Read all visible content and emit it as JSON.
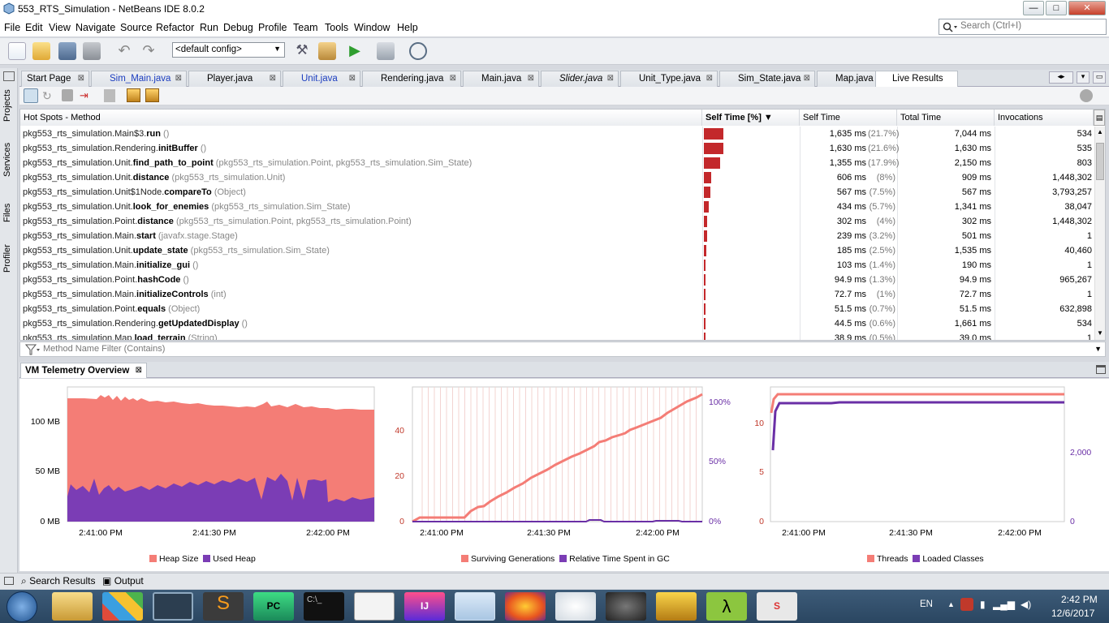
{
  "window": {
    "title": "553_RTS_Simulation - NetBeans IDE 8.0.2",
    "minimize": "—",
    "maximize": "□",
    "close": "✕"
  },
  "menus": [
    "File",
    "Edit",
    "View",
    "Navigate",
    "Source",
    "Refactor",
    "Run",
    "Debug",
    "Profile",
    "Team",
    "Tools",
    "Window",
    "Help"
  ],
  "search": {
    "placeholder": "Search (Ctrl+I)"
  },
  "toolbar": {
    "config": "<default config>"
  },
  "side_tabs": [
    "Projects",
    "Services",
    "Files",
    "Profiler"
  ],
  "editor_tabs": [
    {
      "label": "Start Page"
    },
    {
      "label": "Sim_Main.java"
    },
    {
      "label": "Player.java"
    },
    {
      "label": "Unit.java"
    },
    {
      "label": "Rendering.java"
    },
    {
      "label": "Main.java"
    },
    {
      "label": "Slider.java"
    },
    {
      "label": "Unit_Type.java"
    },
    {
      "label": "Sim_State.java"
    },
    {
      "label": "Map.java"
    },
    {
      "label": "Live Results"
    }
  ],
  "hotspots": {
    "headers": {
      "method": "Hot Spots - Method",
      "self_pct": "Self Time [%] ▼",
      "self_time": "Self Time",
      "total_time": "Total Time",
      "invocations": "Invocations"
    },
    "rows": [
      {
        "cls": "pkg553_rts_simulation.Main$3.",
        "name": "run",
        "args": " ()",
        "self_time": "1,635 ms",
        "pct": "(21.7%)",
        "pct_value": 21.7,
        "total": "7,044 ms",
        "inv": "534"
      },
      {
        "cls": "pkg553_rts_simulation.Rendering.",
        "name": "initBuffer",
        "args": " ()",
        "self_time": "1,630 ms",
        "pct": "(21.6%)",
        "pct_value": 21.6,
        "total": "1,630 ms",
        "inv": "535"
      },
      {
        "cls": "pkg553_rts_simulation.Unit.",
        "name": "find_path_to_point",
        "args": " (pkg553_rts_simulation.Point, pkg553_rts_simulation.Sim_State)",
        "self_time": "1,355 ms",
        "pct": "(17.9%)",
        "pct_value": 17.9,
        "total": "2,150 ms",
        "inv": "803"
      },
      {
        "cls": "pkg553_rts_simulation.Unit.",
        "name": "distance",
        "args": " (pkg553_rts_simulation.Unit)",
        "self_time": "606 ms",
        "pct": "(8%)",
        "pct_value": 8,
        "total": "909 ms",
        "inv": "1,448,302"
      },
      {
        "cls": "pkg553_rts_simulation.Unit$1Node.",
        "name": "compareTo",
        "args": " (Object)",
        "self_time": "567 ms",
        "pct": "(7.5%)",
        "pct_value": 7.5,
        "total": "567 ms",
        "inv": "3,793,257"
      },
      {
        "cls": "pkg553_rts_simulation.Unit.",
        "name": "look_for_enemies",
        "args": " (pkg553_rts_simulation.Sim_State)",
        "self_time": "434 ms",
        "pct": "(5.7%)",
        "pct_value": 5.7,
        "total": "1,341 ms",
        "inv": "38,047"
      },
      {
        "cls": "pkg553_rts_simulation.Point.",
        "name": "distance",
        "args": " (pkg553_rts_simulation.Point, pkg553_rts_simulation.Point)",
        "self_time": "302 ms",
        "pct": "(4%)",
        "pct_value": 4,
        "total": "302 ms",
        "inv": "1,448,302"
      },
      {
        "cls": "pkg553_rts_simulation.Main.",
        "name": "start",
        "args": " (javafx.stage.Stage)",
        "self_time": "239 ms",
        "pct": "(3.2%)",
        "pct_value": 3.2,
        "total": "501 ms",
        "inv": "1"
      },
      {
        "cls": "pkg553_rts_simulation.Unit.",
        "name": "update_state",
        "args": " (pkg553_rts_simulation.Sim_State)",
        "self_time": "185 ms",
        "pct": "(2.5%)",
        "pct_value": 2.5,
        "total": "1,535 ms",
        "inv": "40,460"
      },
      {
        "cls": "pkg553_rts_simulation.Main.",
        "name": "initialize_gui",
        "args": " ()",
        "self_time": "103 ms",
        "pct": "(1.4%)",
        "pct_value": 1.4,
        "total": "190 ms",
        "inv": "1"
      },
      {
        "cls": "pkg553_rts_simulation.Point.",
        "name": "hashCode",
        "args": " ()",
        "self_time": "94.9 ms",
        "pct": "(1.3%)",
        "pct_value": 1.3,
        "total": "94.9 ms",
        "inv": "965,267"
      },
      {
        "cls": "pkg553_rts_simulation.Main.",
        "name": "initializeControls",
        "args": " (int)",
        "self_time": "72.7 ms",
        "pct": "(1%)",
        "pct_value": 1,
        "total": "72.7 ms",
        "inv": "1"
      },
      {
        "cls": "pkg553_rts_simulation.Point.",
        "name": "equals",
        "args": " (Object)",
        "self_time": "51.5 ms",
        "pct": "(0.7%)",
        "pct_value": 0.7,
        "total": "51.5 ms",
        "inv": "632,898"
      },
      {
        "cls": "pkg553_rts_simulation.Rendering.",
        "name": "getUpdatedDisplay",
        "args": " ()",
        "self_time": "44.5 ms",
        "pct": "(0.6%)",
        "pct_value": 0.6,
        "total": "1,661 ms",
        "inv": "534"
      },
      {
        "cls": "pkg553_rts_simulation.Map.",
        "name": "load_terrain",
        "args": " (String)",
        "self_time": "38.9 ms",
        "pct": "(0.5%)",
        "pct_value": 0.5,
        "total": "39.0 ms",
        "inv": "1"
      }
    ]
  },
  "filter": {
    "placeholder": "Method Name Filter (Contains)"
  },
  "telemetry": {
    "tab": "VM Telemetry Overview",
    "heap": {
      "y_ticks": [
        "100 MB",
        "50 MB",
        "0 MB"
      ],
      "x_ticks": [
        "2:41:00 PM",
        "2:41:30 PM",
        "2:42:00 PM"
      ],
      "legend": [
        "Heap Size",
        "Used Heap"
      ]
    },
    "gc": {
      "y_ticks": [
        "40",
        "20",
        "0"
      ],
      "y2_ticks": [
        "100%",
        "50%",
        "0%"
      ],
      "x_ticks": [
        "2:41:00 PM",
        "2:41:30 PM",
        "2:42:00 PM"
      ],
      "legend": [
        "Surviving Generations",
        "Relative Time Spent in GC"
      ]
    },
    "threads": {
      "y_ticks": [
        "10",
        "5",
        "0"
      ],
      "y2_ticks": [
        "2,000",
        "0"
      ],
      "x_ticks": [
        "2:41:00 PM",
        "2:41:30 PM",
        "2:42:00 PM"
      ],
      "legend": [
        "Threads",
        "Loaded Classes"
      ]
    }
  },
  "bottom": {
    "search_results": "Search Results",
    "output": "Output"
  },
  "tray": {
    "lang": "EN",
    "time": "2:42 PM",
    "date": "12/6/2017"
  },
  "colors": {
    "heap_size": "#f47d76",
    "used_heap": "#7b3db5",
    "bar": "#c3282b"
  }
}
